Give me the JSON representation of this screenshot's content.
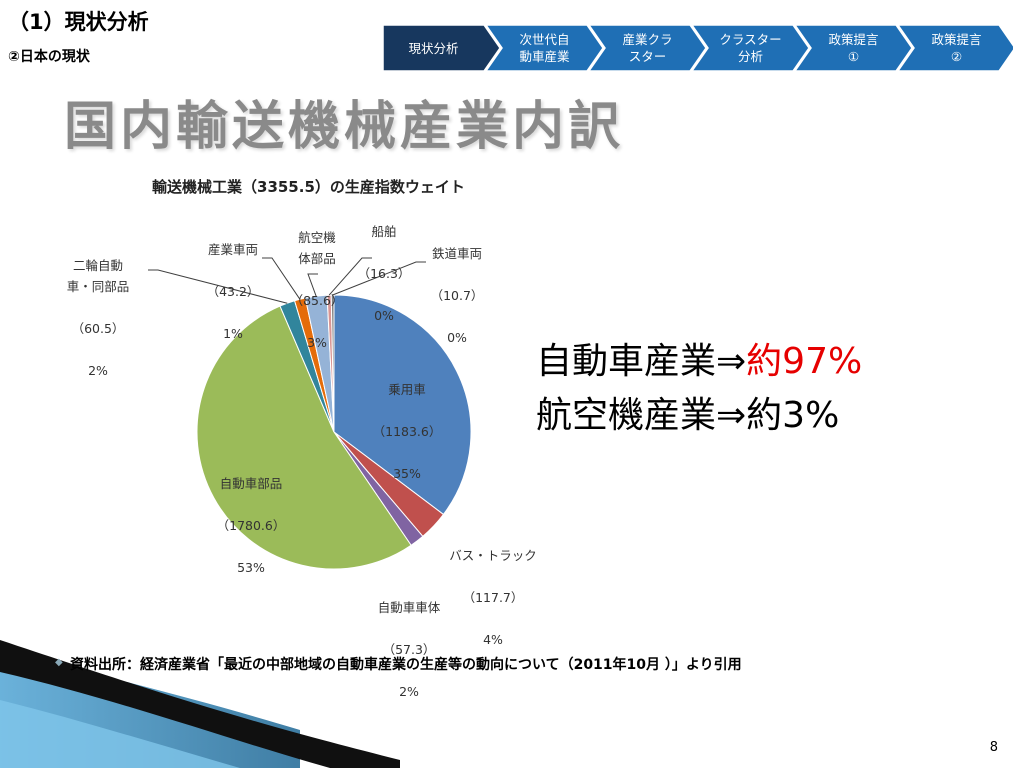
{
  "header": {
    "title": "（1）現状分析",
    "subtitle": "②日本の現状"
  },
  "nav": {
    "steps": [
      {
        "label": "現状分析",
        "active": true
      },
      {
        "label": "次世代自\n動車産業",
        "active": false
      },
      {
        "label": "産業クラ\nスター",
        "active": false
      },
      {
        "label": "クラスター\n分析",
        "active": false
      },
      {
        "label": "政策提言\n①",
        "active": false
      },
      {
        "label": "政策提言\n②",
        "active": false
      }
    ],
    "colors": {
      "active": "#17375e",
      "inactive": "#1f6fb5"
    }
  },
  "slide": {
    "title": "国内輸送機械産業内訳",
    "callout_line1_text": "自動車産業⇒",
    "callout_line1_highlight": "約97%",
    "callout_line2": "航空機産業⇒約3%",
    "highlight_color": "#e60000",
    "source": "資料出所：経済産業省「最近の中部地域の自動車産業の生産等の動向について（2011年10月 ）」より引用",
    "page_number": "8"
  },
  "chart_data": {
    "type": "pie",
    "title": "輸送機械工業（3355.5）の生産指数ウェイト",
    "total": 3355.5,
    "start_angle_deg": 0,
    "direction": "clockwise",
    "slices": [
      {
        "name": "乗用車",
        "value": 1183.6,
        "value_label": "（1183.6）",
        "percent": "35%",
        "color": "#4f81bd"
      },
      {
        "name": "バス・トラック",
        "value": 117.7,
        "value_label": "（117.7）",
        "percent": "4%",
        "color": "#c0504d"
      },
      {
        "name": "自動車車体",
        "value": 57.3,
        "value_label": "（57.3）",
        "percent": "2%",
        "color": "#8064a2"
      },
      {
        "name": "自動車部品",
        "value": 1780.6,
        "value_label": "（1780.6）",
        "percent": "53%",
        "color": "#9bbb59"
      },
      {
        "name": "二輪自動\n車・同部品",
        "value": 60.5,
        "value_label": "（60.5）",
        "percent": "2%",
        "color": "#31859c"
      },
      {
        "name": "産業車両",
        "value": 43.2,
        "value_label": "（43.2）",
        "percent": "1%",
        "color": "#e46c0a"
      },
      {
        "name": "航空機\n体部品",
        "value": 85.6,
        "value_label": "（85.6）",
        "percent": "3%",
        "color": "#95b3d7"
      },
      {
        "name": "船舶",
        "value": 16.3,
        "value_label": "（16.3）",
        "percent": "0%",
        "color": "#d99694"
      },
      {
        "name": "鉄道車両",
        "value": 10.7,
        "value_label": "（10.7）",
        "percent": "0%",
        "color": "#7f7f7f"
      }
    ]
  }
}
